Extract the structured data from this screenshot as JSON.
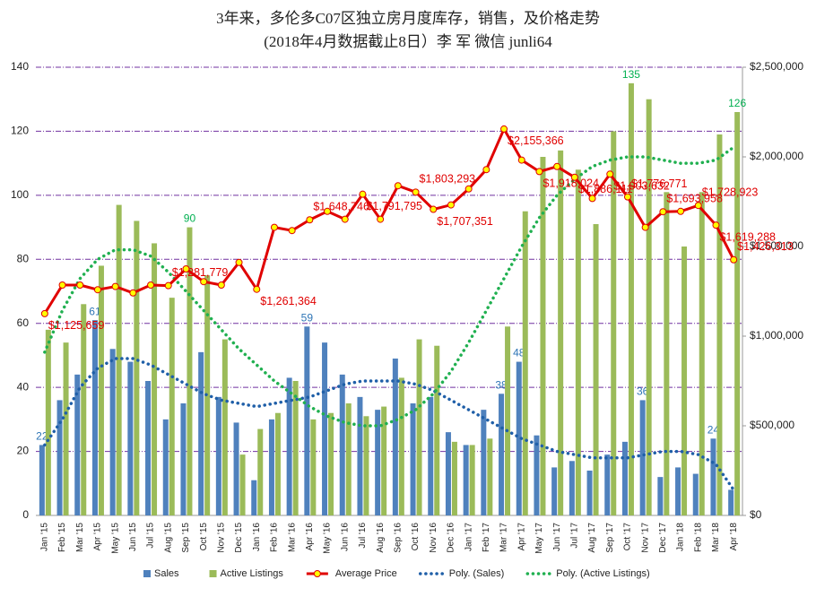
{
  "chart_data": {
    "type": "combo",
    "title": "3年来，多伦多C07区独立房月度库存，销售，及价格走势",
    "subtitle": "(2018年4月数据截止8日）李 军 微信 junli64",
    "categories": [
      "Jan '15",
      "Feb '15",
      "Mar '15",
      "Apr '15",
      "May '15",
      "Jun '15",
      "Jul '15",
      "Aug '15",
      "Sep '15",
      "Oct '15",
      "Nov '15",
      "Dec '15",
      "Jan '16",
      "Feb '16",
      "Mar '16",
      "Apr '16",
      "May '16",
      "Jun '16",
      "Jul '16",
      "Aug '16",
      "Sep '16",
      "Oct '16",
      "Nov '16",
      "Dec '16",
      "Jan '17",
      "Feb '17",
      "Mar '17",
      "Apr '17",
      "May '17",
      "Jun '17",
      "Jul '17",
      "Aug '17",
      "Sep '17",
      "Oct '17",
      "Nov '17",
      "Dec '17",
      "Jan '18",
      "Feb '18",
      "Mar '18",
      "Apr '18"
    ],
    "ylim": [
      0,
      140
    ],
    "yticks": [
      0,
      20,
      40,
      60,
      80,
      100,
      120,
      140
    ],
    "y2lim": [
      0,
      2500000
    ],
    "y2ticks": [
      {
        "value": 0,
        "label": "$0"
      },
      {
        "value": 500000,
        "label": "$500,000"
      },
      {
        "value": 1000000,
        "label": "$1,000,000"
      },
      {
        "value": 1500000,
        "label": "$1,500,000"
      },
      {
        "value": 2000000,
        "label": "$2,000,000"
      },
      {
        "value": 2500000,
        "label": "$2,500,000"
      }
    ],
    "grid": true,
    "legend": "bottom",
    "series": [
      {
        "name": "Sales",
        "kind": "bar",
        "color": "#4f81bd",
        "label_color": "#2e75b6",
        "values": [
          22,
          36,
          44,
          61,
          52,
          48,
          42,
          30,
          35,
          51,
          37,
          29,
          11,
          30,
          43,
          59,
          54,
          44,
          37,
          33,
          49,
          35,
          37,
          26,
          22,
          33,
          38,
          48,
          25,
          15,
          17,
          14,
          19,
          23,
          36,
          12,
          15,
          13,
          24,
          8
        ],
        "value_labels": [
          "22",
          null,
          null,
          "61",
          null,
          null,
          null,
          null,
          null,
          null,
          null,
          null,
          null,
          null,
          null,
          "59",
          null,
          null,
          null,
          null,
          null,
          null,
          null,
          null,
          null,
          null,
          "38",
          "48",
          null,
          null,
          null,
          null,
          null,
          null,
          "36",
          null,
          null,
          null,
          "24",
          null
        ]
      },
      {
        "name": "Active Listings",
        "kind": "bar",
        "color": "#9bbb59",
        "label_color": "#00b050",
        "values": [
          58,
          54,
          66,
          78,
          97,
          92,
          85,
          68,
          90,
          75,
          55,
          19,
          27,
          32,
          42,
          30,
          32,
          35,
          31,
          34,
          43,
          55,
          53,
          23,
          22,
          24,
          59,
          95,
          112,
          114,
          108,
          91,
          120,
          135,
          130,
          101,
          84,
          101,
          119,
          126
        ],
        "value_labels": [
          null,
          null,
          null,
          null,
          null,
          null,
          null,
          null,
          "90",
          null,
          null,
          null,
          null,
          null,
          null,
          null,
          null,
          null,
          null,
          null,
          null,
          null,
          null,
          null,
          null,
          null,
          null,
          null,
          null,
          null,
          null,
          null,
          null,
          "135",
          null,
          null,
          null,
          null,
          null,
          "126"
        ]
      },
      {
        "name": "Average Price",
        "kind": "line",
        "axis": "y2",
        "color": "#e00000",
        "marker_color": "#ffff00",
        "label_color": "#e00000",
        "values": [
          1125659,
          1285000,
          1285000,
          1259000,
          1277000,
          1241000,
          1285000,
          1281779,
          1375000,
          1304000,
          1285000,
          1411000,
          1261364,
          1607000,
          1589000,
          1648746,
          1696000,
          1652000,
          1791795,
          1652000,
          1839000,
          1803293,
          1707351,
          1732000,
          1821000,
          1929000,
          2155366,
          1982000,
          1918024,
          1946000,
          1886111,
          1768000,
          1903632,
          1776771,
          1607000,
          1693958,
          1696000,
          1728923,
          1619288,
          1426313
        ],
        "value_labels": [
          "$1,125,659",
          null,
          null,
          null,
          null,
          null,
          null,
          "$1,281,779",
          null,
          null,
          null,
          null,
          "$1,261,364",
          null,
          null,
          "$1,648,746",
          null,
          null,
          "$1,791,795",
          null,
          null,
          "$1,803,293",
          "$1,707,351",
          null,
          null,
          null,
          "$2,155,366",
          null,
          "$1,918,024",
          null,
          "$1,886,111",
          null,
          "$1,903,632",
          "$1,776,771",
          null,
          "$1,693,958",
          null,
          "$1,728,923",
          "$1,619,288",
          "$1,426,313"
        ]
      },
      {
        "name": "Poly. (Sales)",
        "kind": "trend",
        "color": "#1f5fa8",
        "values": [
          22,
          30,
          40,
          46,
          49,
          49,
          47,
          44,
          41,
          38,
          36,
          35,
          34,
          35,
          36,
          37,
          39,
          41,
          42,
          42,
          42,
          41,
          39,
          36,
          33,
          30,
          27,
          24,
          22,
          20,
          19,
          18,
          18,
          18,
          19,
          20,
          20,
          19,
          16,
          8
        ]
      },
      {
        "name": "Poly. (Active Listings)",
        "kind": "trend",
        "color": "#20b050",
        "values": [
          51,
          64,
          74,
          80,
          83,
          83,
          81,
          76,
          70,
          64,
          58,
          52,
          47,
          42,
          38,
          34,
          31,
          29,
          28,
          28,
          30,
          33,
          38,
          45,
          54,
          64,
          74,
          84,
          93,
          100,
          105,
          109,
          111,
          112,
          112,
          111,
          110,
          110,
          111,
          115
        ]
      }
    ]
  }
}
